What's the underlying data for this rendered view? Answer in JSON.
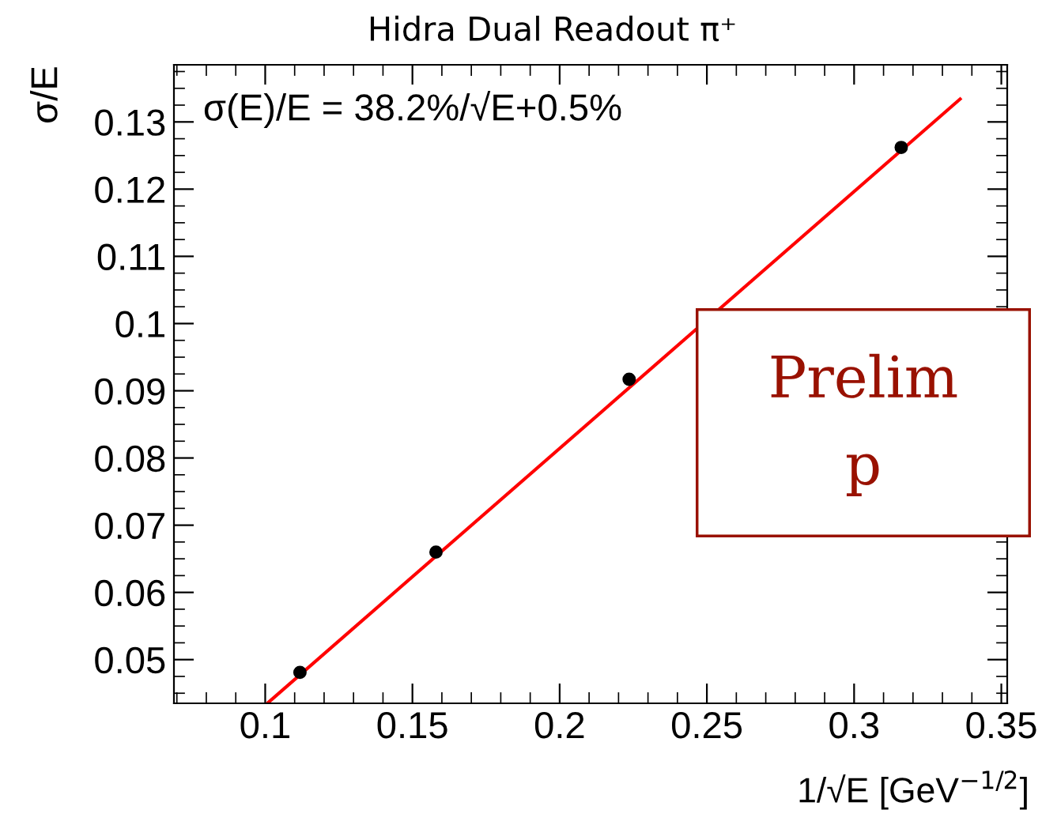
{
  "chart_data": {
    "type": "scatter",
    "title": "Hidra Dual Readout π⁺",
    "xlabel": "1/√E [GeV$^{−1/2}$]",
    "ylabel": "σ/E",
    "xlim": [
      0.069,
      0.352
    ],
    "ylim": [
      0.0435,
      0.1385
    ],
    "xticks": [
      0.1,
      0.15,
      0.2,
      0.25,
      0.3,
      0.35
    ],
    "yticks": [
      0.05,
      0.06,
      0.07,
      0.08,
      0.09,
      0.1,
      0.11,
      0.12,
      0.13
    ],
    "series": [
      {
        "color": "#000000",
        "marker": "circle",
        "x": [
          0.1118,
          0.158,
          0.2236,
          0.316
        ],
        "values": [
          0.0481,
          0.066,
          0.0917,
          0.1262
        ]
      },
      {
        "type": "line",
        "color": "#ff0000",
        "line_style": "solid",
        "x": [
          0.101,
          0.336
        ],
        "values": [
          0.0436,
          0.1334
        ]
      }
    ],
    "annotations": [
      "σ(E)/E = 38.2%/√E+0.5%",
      "Prelim",
      "p"
    ],
    "grid": false,
    "legend": false
  }
}
